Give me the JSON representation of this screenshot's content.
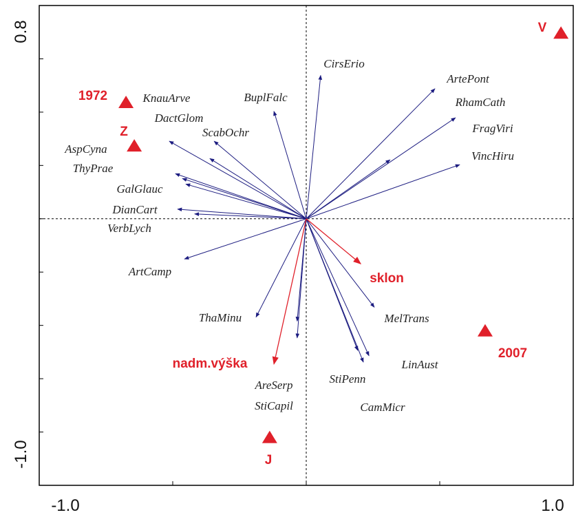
{
  "chart_data": {
    "type": "biplot",
    "xlim": [
      -1,
      1
    ],
    "ylim": [
      -1,
      0.8
    ],
    "xticks": [
      {
        "value": -1,
        "label": "-1.0"
      },
      {
        "value": 1,
        "label": "1.0"
      }
    ],
    "yticks": [
      {
        "value": -1,
        "label": "-1.0"
      },
      0.8
    ],
    "minor_xticks": [
      -0.5,
      0,
      0.5
    ],
    "minor_yticks": [
      -0.8,
      -0.6,
      -0.4,
      -0.2,
      0,
      0.2,
      0.4,
      0.6
    ],
    "species_color": "#1c1c80",
    "env_color": "#e0202a",
    "species": [
      {
        "name": "CirsErio",
        "x": 0.054,
        "y": 0.538
      },
      {
        "name": "ArtePont",
        "x": 0.482,
        "y": 0.488
      },
      {
        "name": "RhamCath",
        "x": 0.559,
        "y": 0.379
      },
      {
        "name": "FragViri",
        "x": 0.314,
        "y": 0.221
      },
      {
        "name": "VincHiru",
        "x": 0.575,
        "y": 0.203
      },
      {
        "name": "BuplFalc",
        "x": -0.121,
        "y": 0.403
      },
      {
        "name": "KnauArve",
        "x": -0.513,
        "y": 0.291
      },
      {
        "name": "DactGlom",
        "x": -0.361,
        "y": 0.226
      },
      {
        "name": "ScabOchr",
        "x": -0.345,
        "y": 0.291
      },
      {
        "name": "AspCyna",
        "x": -0.49,
        "y": 0.169
      },
      {
        "name": "ThyPrae",
        "x": -0.464,
        "y": 0.151
      },
      {
        "name": "GalGlauc",
        "x": -0.451,
        "y": 0.13
      },
      {
        "name": "DianCart",
        "x": -0.482,
        "y": 0.036
      },
      {
        "name": "VerbLych",
        "x": -0.418,
        "y": 0.018
      },
      {
        "name": "ArtCamp",
        "x": -0.456,
        "y": -0.151
      },
      {
        "name": "ThaMinu",
        "x": -0.188,
        "y": -0.369
      },
      {
        "name": "AreSerp",
        "x": -0.034,
        "y": -0.384
      },
      {
        "name": "StiCapil",
        "x": -0.034,
        "y": -0.447
      },
      {
        "name": "MelTrans",
        "x": 0.255,
        "y": -0.332
      },
      {
        "name": "StiPenn",
        "x": 0.214,
        "y": -0.538
      },
      {
        "name": "LinAust",
        "x": 0.235,
        "y": -0.514
      },
      {
        "name": "CamMicr",
        "x": 0.193,
        "y": -0.494
      }
    ],
    "env": [
      {
        "name": "sklon",
        "x": 0.204,
        "y": -0.169
      },
      {
        "name": "nadm.výška",
        "x": -0.121,
        "y": -0.545
      }
    ],
    "samples": [
      {
        "name": "1972",
        "x": -0.675,
        "y": 0.436
      },
      {
        "name": "Z",
        "x": -0.644,
        "y": 0.273
      },
      {
        "name": "V",
        "x": 0.954,
        "y": 0.696
      },
      {
        "name": "2007",
        "x": 0.67,
        "y": -0.421
      },
      {
        "name": "J",
        "x": -0.137,
        "y": -0.821
      }
    ]
  }
}
